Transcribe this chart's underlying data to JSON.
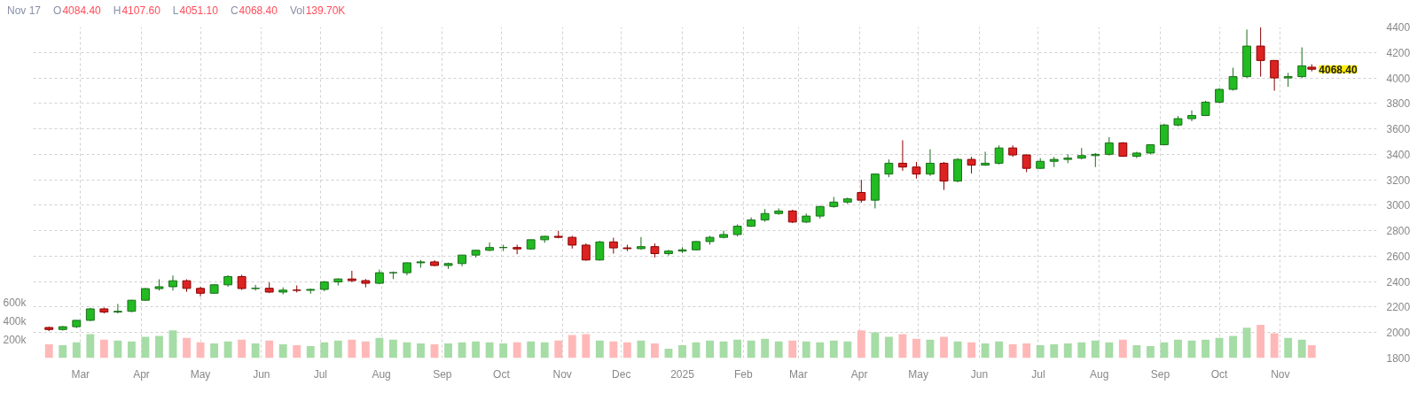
{
  "chart_data": {
    "type": "candlestick",
    "x": [
      "2024-02-14",
      "2024-02-21",
      "2024-02-28",
      "2024-03-06",
      "2024-03-13",
      "2024-03-20",
      "2024-03-27",
      "2024-04-03",
      "2024-04-10",
      "2024-04-17",
      "2024-04-24",
      "2024-05-01",
      "2024-05-08",
      "2024-05-15",
      "2024-05-22",
      "2024-05-29",
      "2024-06-05",
      "2024-06-12",
      "2024-06-19",
      "2024-06-26",
      "2024-07-03",
      "2024-07-10",
      "2024-07-17",
      "2024-07-24",
      "2024-07-31",
      "2024-08-07",
      "2024-08-14",
      "2024-08-21",
      "2024-08-28",
      "2024-09-04",
      "2024-09-11",
      "2024-09-18",
      "2024-09-25",
      "2024-10-02",
      "2024-10-09",
      "2024-10-16",
      "2024-10-23",
      "2024-10-30",
      "2024-11-06",
      "2024-11-13",
      "2024-11-20",
      "2024-11-27",
      "2024-12-04",
      "2024-12-11",
      "2024-12-18",
      "2024-12-25",
      "2025-01-01",
      "2025-01-08",
      "2025-01-15",
      "2025-01-22",
      "2025-01-29",
      "2025-02-05",
      "2025-02-12",
      "2025-02-19",
      "2025-02-26",
      "2025-03-05",
      "2025-03-12",
      "2025-03-19",
      "2025-03-26",
      "2025-04-02",
      "2025-04-09",
      "2025-04-16",
      "2025-04-23",
      "2025-04-30",
      "2025-05-07",
      "2025-05-14",
      "2025-05-21",
      "2025-05-28",
      "2025-06-04",
      "2025-06-11",
      "2025-06-18",
      "2025-06-25",
      "2025-07-02",
      "2025-07-09",
      "2025-07-16",
      "2025-07-23",
      "2025-07-30",
      "2025-08-06",
      "2025-08-13",
      "2025-08-20",
      "2025-08-27",
      "2025-09-03",
      "2025-09-10",
      "2025-09-17",
      "2025-09-24",
      "2025-10-01",
      "2025-10-08",
      "2025-10-15",
      "2025-10-22",
      "2025-10-29",
      "2025-11-05",
      "2025-11-12",
      "2025-11-17"
    ],
    "ohlc": [
      [
        2040,
        2045,
        2011,
        2024
      ],
      [
        2024,
        2052,
        2016,
        2046
      ],
      [
        2046,
        2098,
        2035,
        2096
      ],
      [
        2096,
        2195,
        2090,
        2186
      ],
      [
        2186,
        2196,
        2150,
        2161
      ],
      [
        2161,
        2225,
        2150,
        2167
      ],
      [
        2167,
        2257,
        2160,
        2254
      ],
      [
        2254,
        2350,
        2250,
        2345
      ],
      [
        2345,
        2418,
        2330,
        2360
      ],
      [
        2360,
        2448,
        2330,
        2407
      ],
      [
        2407,
        2418,
        2320,
        2347
      ],
      [
        2347,
        2360,
        2285,
        2309
      ],
      [
        2309,
        2380,
        2305,
        2375
      ],
      [
        2375,
        2450,
        2360,
        2440
      ],
      [
        2440,
        2454,
        2335,
        2346
      ],
      [
        2346,
        2375,
        2330,
        2348
      ],
      [
        2348,
        2394,
        2310,
        2318
      ],
      [
        2318,
        2355,
        2300,
        2333
      ],
      [
        2333,
        2370,
        2315,
        2332
      ],
      [
        2332,
        2345,
        2305,
        2339
      ],
      [
        2339,
        2405,
        2325,
        2398
      ],
      [
        2398,
        2425,
        2370,
        2421
      ],
      [
        2421,
        2485,
        2395,
        2408
      ],
      [
        2408,
        2420,
        2355,
        2387
      ],
      [
        2387,
        2495,
        2380,
        2470
      ],
      [
        2470,
        2480,
        2420,
        2470
      ],
      [
        2470,
        2550,
        2450,
        2548
      ],
      [
        2548,
        2570,
        2510,
        2555
      ],
      [
        2555,
        2568,
        2520,
        2527
      ],
      [
        2527,
        2550,
        2500,
        2542
      ],
      [
        2542,
        2610,
        2520,
        2609
      ],
      [
        2609,
        2650,
        2590,
        2646
      ],
      [
        2646,
        2708,
        2640,
        2668
      ],
      [
        2668,
        2690,
        2640,
        2668
      ],
      [
        2668,
        2690,
        2615,
        2657
      ],
      [
        2657,
        2730,
        2650,
        2729
      ],
      [
        2729,
        2760,
        2705,
        2756
      ],
      [
        2756,
        2800,
        2740,
        2748
      ],
      [
        2748,
        2760,
        2660,
        2687
      ],
      [
        2687,
        2700,
        2565,
        2570
      ],
      [
        2570,
        2720,
        2565,
        2712
      ],
      [
        2712,
        2745,
        2620,
        2665
      ],
      [
        2665,
        2690,
        2640,
        2659
      ],
      [
        2659,
        2750,
        2650,
        2675
      ],
      [
        2675,
        2700,
        2590,
        2620
      ],
      [
        2620,
        2650,
        2605,
        2640
      ],
      [
        2640,
        2670,
        2625,
        2650
      ],
      [
        2650,
        2720,
        2645,
        2715
      ],
      [
        2715,
        2760,
        2690,
        2748
      ],
      [
        2748,
        2800,
        2740,
        2770
      ],
      [
        2770,
        2850,
        2755,
        2835
      ],
      [
        2835,
        2905,
        2830,
        2885
      ],
      [
        2885,
        2970,
        2870,
        2935
      ],
      [
        2935,
        2975,
        2925,
        2955
      ],
      [
        2955,
        2965,
        2860,
        2868
      ],
      [
        2868,
        2935,
        2860,
        2915
      ],
      [
        2915,
        2995,
        2895,
        2990
      ],
      [
        2990,
        3065,
        2980,
        3025
      ],
      [
        3025,
        3060,
        3010,
        3050
      ],
      [
        3100,
        3200,
        3020,
        3040
      ],
      [
        3040,
        3250,
        2975,
        3245
      ],
      [
        3245,
        3360,
        3220,
        3330
      ],
      [
        3330,
        3510,
        3270,
        3300
      ],
      [
        3300,
        3340,
        3210,
        3245
      ],
      [
        3245,
        3440,
        3230,
        3330
      ],
      [
        3330,
        3340,
        3120,
        3190
      ],
      [
        3190,
        3370,
        3180,
        3360
      ],
      [
        3360,
        3380,
        3250,
        3315
      ],
      [
        3315,
        3420,
        3310,
        3330
      ],
      [
        3330,
        3470,
        3320,
        3450
      ],
      [
        3450,
        3470,
        3380,
        3395
      ],
      [
        3395,
        3400,
        3260,
        3290
      ],
      [
        3290,
        3370,
        3285,
        3345
      ],
      [
        3345,
        3380,
        3300,
        3360
      ],
      [
        3360,
        3400,
        3330,
        3370
      ],
      [
        3370,
        3450,
        3360,
        3390
      ],
      [
        3390,
        3410,
        3300,
        3400
      ],
      [
        3400,
        3535,
        3390,
        3490
      ],
      [
        3490,
        3495,
        3380,
        3385
      ],
      [
        3385,
        3420,
        3370,
        3410
      ],
      [
        3410,
        3480,
        3400,
        3475
      ],
      [
        3475,
        3640,
        3470,
        3630
      ],
      [
        3630,
        3700,
        3620,
        3680
      ],
      [
        3680,
        3745,
        3660,
        3705
      ],
      [
        3705,
        3820,
        3700,
        3810
      ],
      [
        3810,
        3920,
        3800,
        3910
      ],
      [
        3910,
        4080,
        3900,
        4010
      ],
      [
        4010,
        4380,
        4000,
        4250
      ],
      [
        4250,
        4398,
        4010,
        4137
      ],
      [
        4137,
        4140,
        3900,
        4000
      ],
      [
        4000,
        4040,
        3930,
        4010
      ],
      [
        4010,
        4240,
        4000,
        4095
      ],
      [
        4084.4,
        4107.6,
        4051.1,
        4068.4
      ]
    ],
    "series": [
      {
        "type": "bar",
        "axis": "y2",
        "values": [
          150000,
          140000,
          170000,
          260000,
          200000,
          190000,
          180000,
          230000,
          240000,
          300000,
          220000,
          170000,
          160000,
          180000,
          200000,
          160000,
          190000,
          150000,
          140000,
          130000,
          170000,
          190000,
          200000,
          180000,
          220000,
          200000,
          170000,
          160000,
          150000,
          160000,
          170000,
          180000,
          170000,
          160000,
          170000,
          180000,
          170000,
          190000,
          250000,
          260000,
          190000,
          180000,
          170000,
          190000,
          160000,
          100000,
          140000,
          170000,
          190000,
          180000,
          200000,
          190000,
          210000,
          180000,
          190000,
          180000,
          170000,
          190000,
          180000,
          300000,
          280000,
          230000,
          260000,
          210000,
          200000,
          230000,
          180000,
          170000,
          160000,
          180000,
          150000,
          160000,
          140000,
          150000,
          160000,
          170000,
          190000,
          170000,
          200000,
          140000,
          130000,
          170000,
          200000,
          190000,
          200000,
          220000,
          240000,
          330000,
          360000,
          270000,
          220000,
          200000,
          140000
        ],
        "colors": [
          "#ffb8b8",
          "#a6dca6",
          "#a6dca6",
          "#a6dca6",
          "#ffb8b8",
          "#a6dca6",
          "#a6dca6",
          "#a6dca6",
          "#a6dca6",
          "#a6dca6",
          "#ffb8b8",
          "#ffb8b8",
          "#a6dca6",
          "#a6dca6",
          "#ffb8b8",
          "#a6dca6",
          "#ffb8b8",
          "#a6dca6",
          "#ffb8b8",
          "#a6dca6",
          "#a6dca6",
          "#a6dca6",
          "#ffb8b8",
          "#ffb8b8",
          "#a6dca6",
          "#a6dca6",
          "#a6dca6",
          "#a6dca6",
          "#ffb8b8",
          "#a6dca6",
          "#a6dca6",
          "#a6dca6",
          "#a6dca6",
          "#a6dca6",
          "#ffb8b8",
          "#a6dca6",
          "#a6dca6",
          "#ffb8b8",
          "#ffb8b8",
          "#ffb8b8",
          "#a6dca6",
          "#ffb8b8",
          "#ffb8b8",
          "#a6dca6",
          "#ffb8b8",
          "#a6dca6",
          "#a6dca6",
          "#a6dca6",
          "#a6dca6",
          "#a6dca6",
          "#a6dca6",
          "#a6dca6",
          "#a6dca6",
          "#a6dca6",
          "#ffb8b8",
          "#a6dca6",
          "#a6dca6",
          "#a6dca6",
          "#a6dca6",
          "#ffb8b8",
          "#a6dca6",
          "#a6dca6",
          "#ffb8b8",
          "#ffb8b8",
          "#a6dca6",
          "#ffb8b8",
          "#a6dca6",
          "#ffb8b8",
          "#a6dca6",
          "#a6dca6",
          "#ffb8b8",
          "#ffb8b8",
          "#a6dca6",
          "#a6dca6",
          "#a6dca6",
          "#a6dca6",
          "#a6dca6",
          "#a6dca6",
          "#ffb8b8",
          "#a6dca6",
          "#a6dca6",
          "#a6dca6",
          "#a6dca6",
          "#a6dca6",
          "#a6dca6",
          "#a6dca6",
          "#a6dca6",
          "#a6dca6",
          "#ffb8b8",
          "#ffb8b8",
          "#a6dca6",
          "#a6dca6",
          "#ffb8b8"
        ]
      }
    ],
    "xlim": [
      "2024-02-06",
      "2025-12-20"
    ],
    "xticks": [
      {
        "value": "2024-03-01",
        "label": "Mar"
      },
      {
        "value": "2024-04-01",
        "label": "Apr"
      },
      {
        "value": "2024-05-01",
        "label": "May"
      },
      {
        "value": "2024-06-01",
        "label": "Jun"
      },
      {
        "value": "2024-07-01",
        "label": "Jul"
      },
      {
        "value": "2024-08-01",
        "label": "Aug"
      },
      {
        "value": "2024-09-01",
        "label": "Sep"
      },
      {
        "value": "2024-10-01",
        "label": "Oct"
      },
      {
        "value": "2024-11-01",
        "label": "Nov"
      },
      {
        "value": "2024-12-01",
        "label": "Dec"
      },
      {
        "value": "2025-01-01",
        "label": "2025"
      },
      {
        "value": "2025-02-01",
        "label": "Feb"
      },
      {
        "value": "2025-03-01",
        "label": "Mar"
      },
      {
        "value": "2025-04-01",
        "label": "Apr"
      },
      {
        "value": "2025-05-01",
        "label": "May"
      },
      {
        "value": "2025-06-01",
        "label": "Jun"
      },
      {
        "value": "2025-07-01",
        "label": "Jul"
      },
      {
        "value": "2025-08-01",
        "label": "Aug"
      },
      {
        "value": "2025-09-01",
        "label": "Sep"
      },
      {
        "value": "2025-10-01",
        "label": "Oct"
      },
      {
        "value": "2025-11-01",
        "label": "Nov"
      }
    ],
    "ylim": [
      1800,
      4400
    ],
    "yticks": [
      1800,
      2000,
      2200,
      2400,
      2600,
      2800,
      3000,
      3200,
      3400,
      3600,
      3800,
      4000,
      4200,
      4400
    ],
    "y2lim": [
      0,
      3600000
    ],
    "y2ticks": [
      {
        "value": 200000,
        "label": "200k"
      },
      {
        "value": 400000,
        "label": "400k"
      },
      {
        "value": 600000,
        "label": "600k"
      }
    ],
    "annotations": [
      "Nov 17",
      "O",
      "4084.40",
      "H",
      "4107.60",
      "L",
      "4051.10",
      "C",
      "4068.40",
      "Vol",
      "139.70K",
      {
        "text": "4068.40",
        "x": "2025-11-17",
        "y": 4068.4
      }
    ],
    "grid": true
  }
}
